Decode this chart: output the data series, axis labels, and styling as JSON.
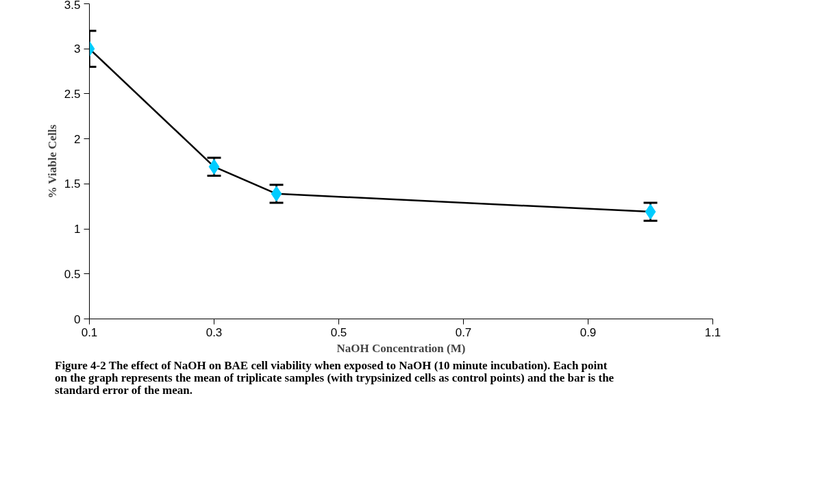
{
  "chart_data": {
    "type": "line",
    "xlabel": "NaOH Concentration (M)",
    "ylabel": "% Viable Cells",
    "x": [
      0.1,
      0.3,
      0.4,
      1.0
    ],
    "series": [
      {
        "color": "#00ccff",
        "values": [
          3.0,
          1.69,
          1.39,
          1.19
        ],
        "errors": [
          0.2,
          0.1,
          0.1,
          0.1
        ]
      }
    ],
    "xlim": [
      0.1,
      1.1
    ],
    "xticks": [
      0.1,
      0.3,
      0.5,
      0.7,
      0.9,
      1.1
    ],
    "ylim": [
      0,
      3.5
    ],
    "yticks": [
      0,
      0.5,
      1,
      1.5,
      2,
      2.5,
      3,
      3.5
    ],
    "grid": false,
    "marker": "diamond",
    "line_style": "solid",
    "annotations": [
      "Figure 4-2   The effect of NaOH on BAE cell viability when exposed to NaOH (10 minute incubation). Each point on the graph represents the mean of triplicate samples (with trypsinized cells as control points) and the bar is the standard error of the mean."
    ]
  }
}
